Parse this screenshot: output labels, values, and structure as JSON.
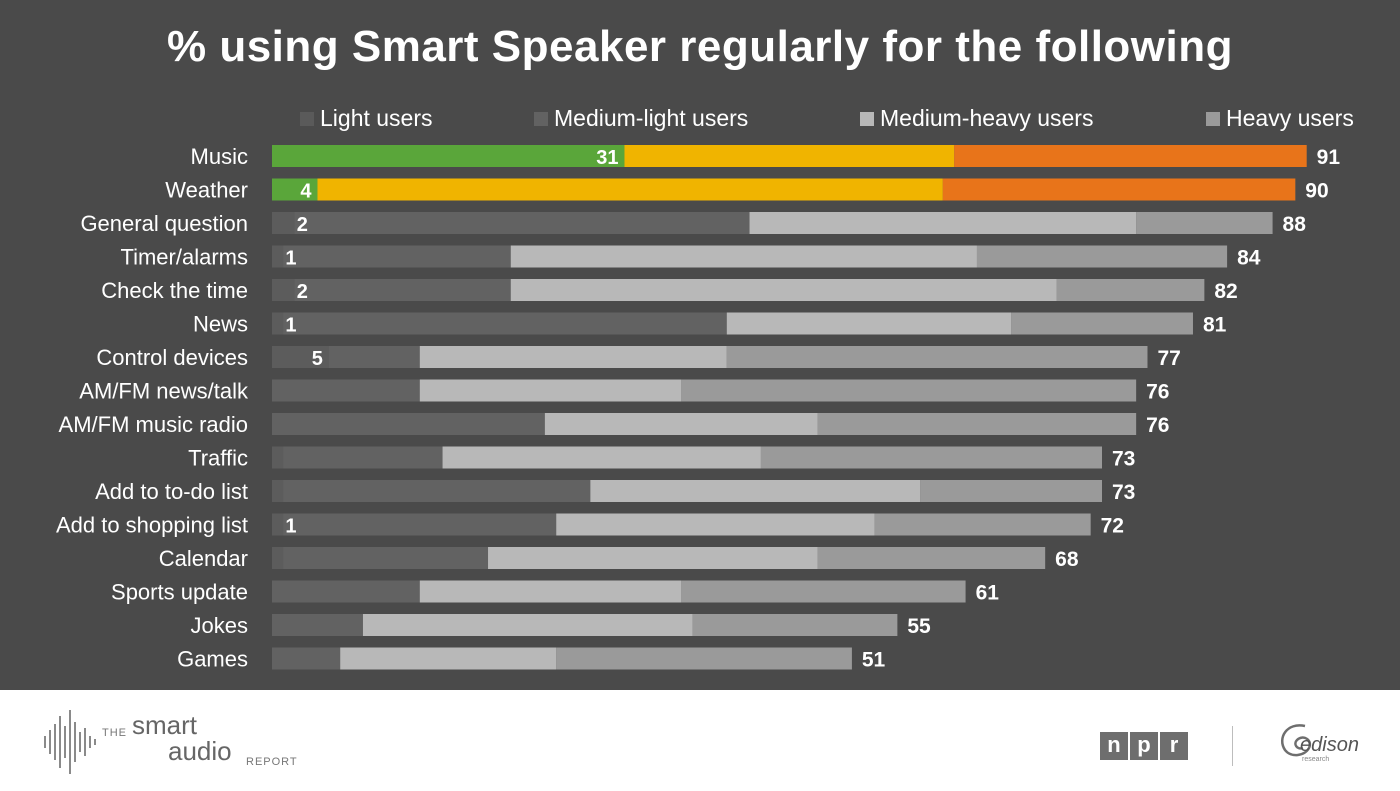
{
  "title": "% using Smart Speaker regularly for the following",
  "legend": [
    {
      "label": "Light users",
      "color": "#5a5a5a"
    },
    {
      "label": "Medium-light users",
      "color": "#626262"
    },
    {
      "label": "Medium-heavy users",
      "color": "#b8b8b8"
    },
    {
      "label": "Heavy users",
      "color": "#9a9a9a"
    }
  ],
  "chart_data": {
    "type": "bar",
    "orientation": "horizontal",
    "stacked": true,
    "title": "% using Smart Speaker regularly for the following",
    "xlim": [
      0,
      100
    ],
    "categories": [
      "Music",
      "Weather",
      "General question",
      "Timer/alarms",
      "Check the time",
      "News",
      "Control devices",
      "AM/FM news/talk",
      "AM/FM music radio",
      "Traffic",
      "Add to to-do list",
      "Add to shopping list",
      "Calendar",
      "Sports update",
      "Jokes",
      "Games"
    ],
    "series": [
      {
        "name": "Light users",
        "values": [
          31,
          4,
          2,
          1,
          2,
          1,
          5,
          0,
          0,
          1,
          1,
          1,
          1,
          0,
          0,
          0
        ]
      },
      {
        "name": "Medium-light users",
        "values": [
          0,
          0,
          40,
          20,
          19,
          39,
          8,
          13,
          24,
          14,
          27,
          24,
          18,
          13,
          8,
          6
        ]
      },
      {
        "name": "Medium-heavy users",
        "values": [
          29,
          55,
          34,
          41,
          48,
          25,
          27,
          23,
          24,
          28,
          29,
          28,
          29,
          23,
          29,
          19
        ]
      },
      {
        "name": "Heavy users",
        "values": [
          31,
          31,
          12,
          22,
          13,
          16,
          37,
          40,
          28,
          30,
          16,
          19,
          20,
          25,
          18,
          26
        ]
      }
    ],
    "totals": [
      91,
      90,
      88,
      84,
      82,
      81,
      77,
      76,
      76,
      73,
      73,
      72,
      68,
      61,
      55,
      51
    ],
    "inside_labels": [
      "31",
      "4",
      "2",
      "1",
      "2",
      "1",
      "5",
      "",
      "",
      "",
      "",
      "1",
      "",
      "",
      "",
      ""
    ],
    "highlight_colors": {
      "Music": [
        "#8c8c8c",
        "#5aa63a",
        "#5aa63a",
        "#f0b400",
        "#e8741a"
      ],
      "Weather": [
        "#8c8c8c",
        "#5aa63a",
        "#5aa63a",
        "#f0b400",
        "#e8741a"
      ]
    }
  },
  "footer": {
    "brand_the": "THE",
    "brand_smart": "smart",
    "brand_audio": "audio",
    "brand_report": "REPORT",
    "npr_letters": [
      "n",
      "p",
      "r"
    ],
    "edison": "edison",
    "edison_sub": "research"
  }
}
